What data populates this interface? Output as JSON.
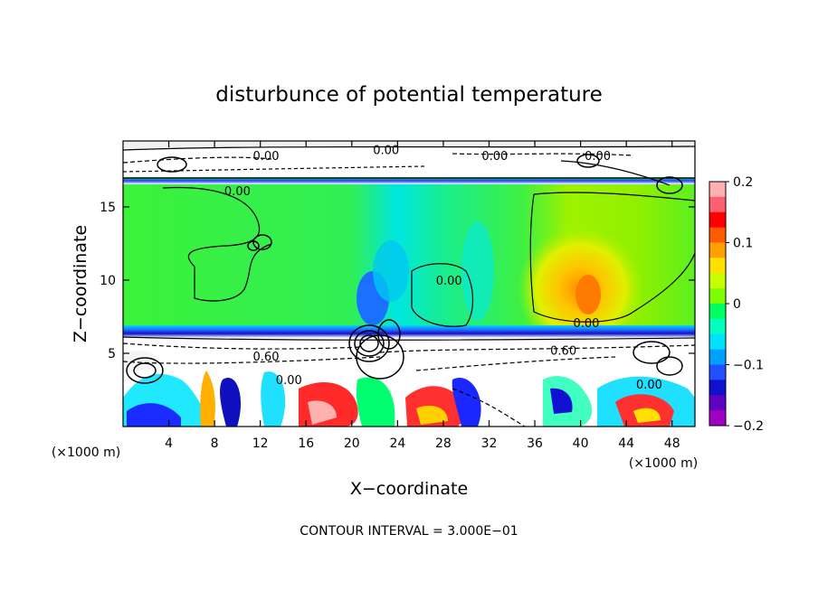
{
  "chart_data": {
    "type": "heatmap",
    "title": "disturbunce of potential temperature",
    "xlabel": "X−coordinate",
    "ylabel": "Z−coordinate",
    "x_unit_left": "(×1000 m)",
    "x_unit_right": "(×1000 m)",
    "xlim": [
      0,
      50
    ],
    "ylim": [
      0,
      19.5
    ],
    "x_ticks": [
      4,
      8,
      12,
      16,
      20,
      24,
      28,
      32,
      36,
      40,
      44,
      48
    ],
    "y_ticks": [
      5,
      10,
      15
    ],
    "colorbar": {
      "range": [
        -0.2,
        0.2
      ],
      "ticks": [
        0.2,
        0.1,
        0,
        -0.1,
        -0.2
      ],
      "tick_labels": [
        "0.2",
        "0.1",
        "0",
        "−0.1",
        "−0.2"
      ],
      "colors": [
        "#ffb0b0",
        "#ff6070",
        "#ff0000",
        "#ff5a00",
        "#ffa000",
        "#ffe000",
        "#c8ff00",
        "#7cff00",
        "#00ff60",
        "#00ffc0",
        "#00e0ff",
        "#00a0ff",
        "#2050ff",
        "#1010d0",
        "#6000c0",
        "#a000c0"
      ]
    },
    "contour_labels": [
      {
        "text": "0.00",
        "x": 10.0,
        "z": 16.1
      },
      {
        "text": "0.00",
        "x": 40.5,
        "z": 7.1
      },
      {
        "text": "0.60",
        "x": 38.5,
        "z": 5.2
      },
      {
        "text": "0.60",
        "x": 12.5,
        "z": 4.8
      },
      {
        "text": "0.00",
        "x": 14.5,
        "z": 3.2
      },
      {
        "text": "0.00",
        "x": 46.0,
        "z": 2.9
      },
      {
        "text": "0.00",
        "x": 28.5,
        "z": 10.0
      },
      {
        "text": "0.00",
        "x": 12.5,
        "z": 18.5
      },
      {
        "text": "0.00",
        "x": 32.5,
        "z": 18.5
      },
      {
        "text": "0.00",
        "x": 41.5,
        "z": 18.5
      },
      {
        "text": "0.00",
        "x": 23.0,
        "z": 18.9
      }
    ],
    "footer": "CONTOUR INTERVAL = 3.000E−01"
  }
}
